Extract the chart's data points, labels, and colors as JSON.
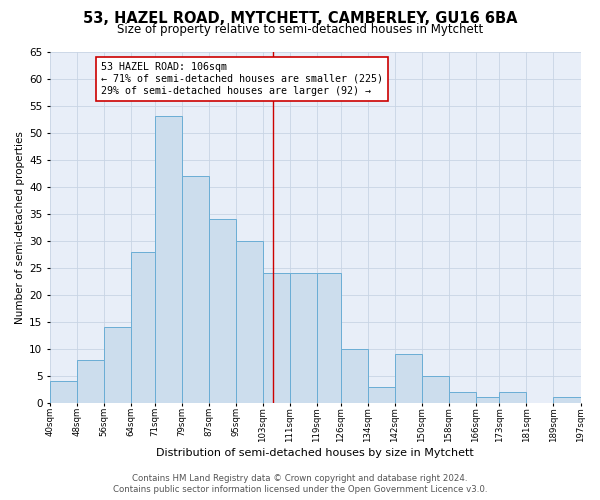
{
  "title": "53, HAZEL ROAD, MYTCHETT, CAMBERLEY, GU16 6BA",
  "subtitle": "Size of property relative to semi-detached houses in Mytchett",
  "xlabel": "Distribution of semi-detached houses by size in Mytchett",
  "ylabel": "Number of semi-detached properties",
  "footer_line1": "Contains HM Land Registry data © Crown copyright and database right 2024.",
  "footer_line2": "Contains public sector information licensed under the Open Government Licence v3.0.",
  "annotation_title": "53 HAZEL ROAD: 106sqm",
  "annotation_line1": "← 71% of semi-detached houses are smaller (225)",
  "annotation_line2": "29% of semi-detached houses are larger (92) →",
  "property_sqm": 106,
  "bin_labels": [
    "40sqm",
    "48sqm",
    "56sqm",
    "64sqm",
    "71sqm",
    "79sqm",
    "87sqm",
    "95sqm",
    "103sqm",
    "111sqm",
    "119sqm",
    "126sqm",
    "134sqm",
    "142sqm",
    "150sqm",
    "158sqm",
    "166sqm",
    "173sqm",
    "181sqm",
    "189sqm",
    "197sqm"
  ],
  "bin_edges": [
    40,
    48,
    56,
    64,
    71,
    79,
    87,
    95,
    103,
    111,
    119,
    126,
    134,
    142,
    150,
    158,
    166,
    173,
    181,
    189,
    197
  ],
  "bar_heights": [
    4,
    8,
    14,
    28,
    53,
    42,
    34,
    30,
    24,
    24,
    24,
    10,
    3,
    9,
    5,
    2,
    1,
    2,
    0,
    1
  ],
  "bar_color": "#ccdded",
  "bar_edge_color": "#6aadd5",
  "marker_line_color": "#cc0000",
  "grid_color": "#c8d4e4",
  "background_color": "#e8eef8",
  "ylim": [
    0,
    65
  ],
  "yticks": [
    0,
    5,
    10,
    15,
    20,
    25,
    30,
    35,
    40,
    45,
    50,
    55,
    60,
    65
  ],
  "title_fontsize": 10.5,
  "subtitle_fontsize": 8.5
}
